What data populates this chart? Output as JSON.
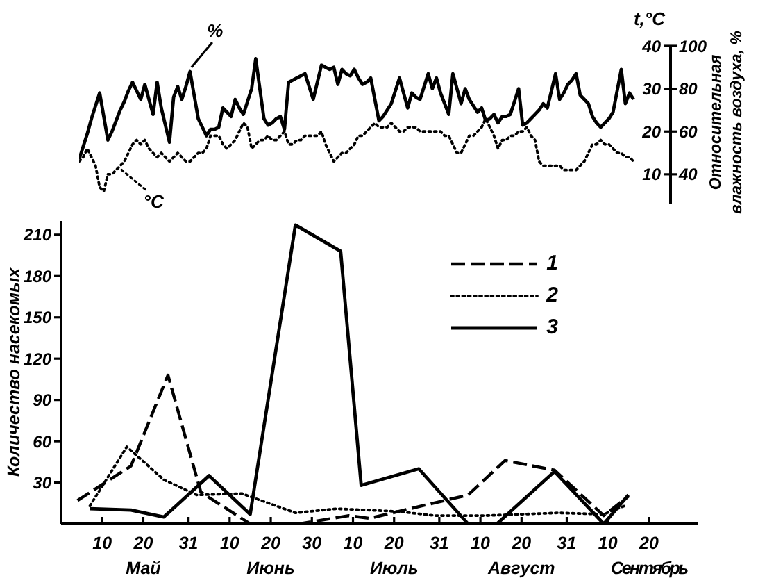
{
  "chart_data": [
    {
      "type": "line",
      "ylabel": "t,°C",
      "y2label": "Относительная влажность воздуха, %",
      "categories": [
        null,
        null,
        null,
        null,
        null,
        null,
        null,
        null,
        null,
        null,
        null,
        null,
        null,
        null,
        null,
        null,
        null,
        null,
        null,
        null,
        null,
        null,
        null,
        null,
        null,
        null,
        null,
        null,
        null,
        null,
        null,
        null,
        null,
        null,
        null,
        null,
        null,
        null,
        null,
        null,
        null,
        null,
        null,
        null,
        null,
        null,
        null,
        null,
        null,
        null,
        null,
        null,
        null,
        null,
        null,
        null,
        null,
        null,
        null,
        null,
        null,
        null,
        null,
        null,
        null,
        null,
        null,
        null,
        null,
        null,
        null,
        null,
        null,
        null,
        null,
        null,
        null,
        null,
        null,
        null,
        null,
        null,
        null,
        null,
        null,
        null,
        null,
        null,
        null,
        null,
        null,
        null,
        null,
        null,
        null,
        null,
        null,
        null,
        null,
        null,
        null,
        null,
        null,
        null,
        null,
        null,
        null,
        null,
        null,
        null,
        null,
        null,
        null,
        null,
        null,
        null,
        null,
        null,
        null,
        null,
        null,
        null,
        null,
        null,
        null,
        null,
        null,
        null,
        null,
        null,
        null,
        null,
        null,
        null,
        null,
        null,
        null,
        null,
        null,
        null,
        null,
        null,
        null,
        null,
        null
      ],
      "ylim": [
        3,
        40
      ],
      "yticks": [
        10,
        20,
        30,
        40
      ],
      "y2lim": [
        26,
        100
      ],
      "y2ticks": [
        40,
        60,
        80,
        100
      ],
      "tick_labels": "y",
      "marker": "none",
      "series": [
        {
          "name": "%",
          "color": "#000000",
          "line_style": "solid",
          "axis": "y2",
          "values": [
            47,
            53,
            59,
            66,
            72,
            78,
            67,
            56,
            60,
            65,
            70,
            74,
            79,
            83,
            79,
            75,
            82,
            75,
            68,
            83,
            71,
            63,
            55,
            76,
            81,
            75,
            81,
            88,
            77,
            66,
            62,
            58,
            61,
            61,
            62,
            71,
            69,
            67,
            75,
            71,
            68,
            74,
            80,
            94,
            80,
            66,
            63,
            64,
            66,
            67,
            61,
            83,
            84,
            85,
            86,
            87,
            81,
            75,
            83,
            91,
            90,
            89,
            90,
            82,
            89,
            87,
            86,
            89,
            85,
            82,
            83,
            85,
            75,
            65,
            67,
            70,
            73,
            79,
            85,
            78,
            71,
            78,
            76,
            75,
            81,
            87,
            80,
            85,
            78,
            73,
            68,
            87,
            80,
            73,
            80,
            75,
            72,
            69,
            71,
            65,
            66,
            68,
            64,
            67,
            67,
            68,
            74,
            80,
            63,
            64,
            66,
            68,
            70,
            73,
            71,
            79,
            87,
            75,
            78,
            82,
            84,
            87,
            77,
            75,
            73,
            67,
            64,
            62,
            64,
            66,
            69,
            79,
            89,
            73,
            78,
            75,
            null,
            null,
            null,
            null,
            null,
            null,
            null,
            null,
            null
          ]
        },
        {
          "name": "°C",
          "color": "#000000",
          "line_style": "dotted",
          "values": [
            13,
            14,
            16,
            14,
            12,
            7,
            6,
            10,
            10,
            11,
            12,
            13,
            15,
            17,
            18,
            17,
            18,
            16,
            15,
            14,
            15,
            14,
            13,
            14,
            15,
            14,
            13,
            13,
            14,
            15,
            15,
            16,
            19,
            19,
            19,
            17,
            16,
            17,
            18,
            20,
            22,
            21,
            16,
            17,
            18,
            18,
            19,
            18,
            18,
            19,
            20,
            17,
            17,
            18,
            18,
            19,
            19,
            19,
            19,
            20,
            17,
            15,
            13,
            14,
            15,
            15,
            16,
            17,
            19,
            19,
            20,
            21,
            22,
            21,
            21,
            21,
            22,
            21,
            20,
            20,
            21,
            21,
            21,
            20,
            20,
            20,
            20,
            20,
            20,
            19,
            19,
            17,
            15,
            15,
            17,
            19,
            19,
            20,
            21,
            23,
            21,
            19,
            16,
            18,
            18,
            19,
            19,
            20,
            20,
            21,
            19,
            18,
            13,
            12,
            12,
            12,
            12,
            12,
            11,
            11,
            11,
            11,
            12,
            13,
            15,
            17,
            17,
            18,
            17,
            17,
            16,
            15,
            15,
            14,
            14,
            13,
            null,
            null,
            null,
            null,
            null,
            null,
            null,
            null,
            null
          ]
        }
      ]
    },
    {
      "type": "line",
      "ylabel": "Количество насекомых",
      "xlim": [
        "--04-30",
        "--10-02"
      ],
      "xticks": [
        {
          "value": "--05-10",
          "label": "10"
        },
        {
          "value": "--05-20",
          "label": "20\nМай"
        },
        {
          "value": "--05-31",
          "label": "31"
        },
        {
          "value": "--06-10",
          "label": "10"
        },
        {
          "value": "--06-20",
          "label": "20\nИюнь"
        },
        {
          "value": "--06-30",
          "label": "30"
        },
        {
          "value": "--07-10",
          "label": "10"
        },
        {
          "value": "--07-20",
          "label": "20\nИюль"
        },
        {
          "value": "--07-31",
          "label": "31"
        },
        {
          "value": "--08-10",
          "label": "10"
        },
        {
          "value": "--08-20",
          "label": "20\nАвгуст"
        },
        {
          "value": "--08-31",
          "label": "31"
        },
        {
          "value": "--09-10",
          "label": "10"
        },
        {
          "value": "--09-20",
          "label": "20\nСентябрь"
        }
      ],
      "ylim": [
        0,
        220
      ],
      "yticks": [
        30,
        60,
        90,
        120,
        150,
        180,
        210
      ],
      "legend": "top right",
      "marker": "none",
      "series": [
        {
          "name": "1",
          "color": "#000000",
          "line_style": "dashed",
          "x": [
            "--05-04",
            "--05-17",
            "--05-26",
            "--06-03",
            "--06-15",
            "--06-27",
            "--07-09",
            "--07-14",
            "--08-07",
            "--08-16",
            "--08-28",
            "--09-09",
            "--09-15"
          ],
          "values": [
            17,
            42,
            108,
            23,
            0,
            0,
            6,
            4,
            21,
            46,
            39,
            6,
            20
          ]
        },
        {
          "name": "2",
          "color": "#000000",
          "line_style": "dotted",
          "x": [
            "--05-07",
            "--05-16",
            "--05-25",
            "--06-02",
            "--06-13",
            "--06-26",
            "--07-06",
            "--07-21",
            "--07-30",
            "--08-11",
            "--08-29",
            "--09-09",
            "--09-14"
          ],
          "values": [
            13,
            56,
            32,
            21,
            22,
            8,
            11,
            9,
            6,
            6,
            8,
            7,
            13
          ]
        },
        {
          "name": "3",
          "color": "#000000",
          "line_style": "solid",
          "x": [
            "--05-07",
            "--05-17",
            "--05-25",
            "--06-05",
            "--06-15",
            "--06-26",
            "--07-07",
            "--07-12",
            "--07-26",
            "--08-07",
            "--08-14",
            "--08-28",
            "--09-09",
            "--09-15"
          ],
          "values": [
            11,
            10,
            5,
            35,
            7,
            217,
            198,
            28,
            40,
            0,
            0,
            38,
            0,
            21
          ]
        }
      ]
    }
  ]
}
